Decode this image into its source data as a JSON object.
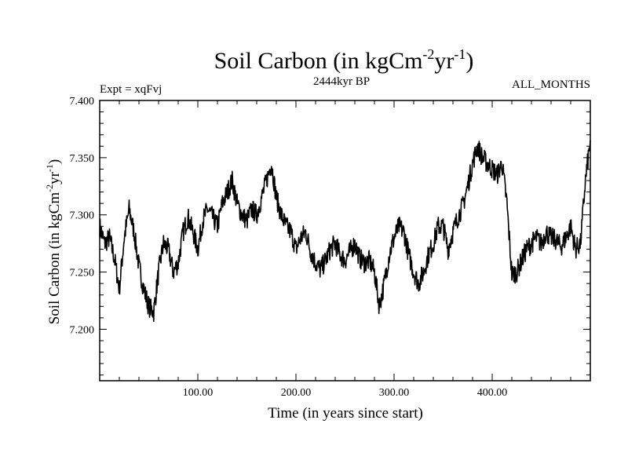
{
  "chart_data": {
    "type": "line",
    "title": "Soil Carbon (in kgCm",
    "title_sup1": "-2",
    "title_mid": "yr",
    "title_sup2": "-1",
    "title_end": ")",
    "left_label": "Expt = xqFvj",
    "center_label": "2444kyr BP",
    "right_label": "ALL_MONTHS",
    "xlabel": "Time (in years since start)",
    "ylabel": "Soil Carbon (in kgCm",
    "ylabel_sup1": "-2",
    "ylabel_mid": "yr",
    "ylabel_sup2": "-1",
    "ylabel_end": ")",
    "xlim": [
      0,
      500
    ],
    "ylim": [
      7.155,
      7.4
    ],
    "x_ticks": [
      100,
      200,
      300,
      400
    ],
    "x_tick_labels": [
      "100.00",
      "200.00",
      "300.00",
      "400.00"
    ],
    "y_ticks": [
      7.2,
      7.25,
      7.3,
      7.35,
      7.4
    ],
    "y_tick_labels": [
      "7.200",
      "7.250",
      "7.300",
      "7.350",
      "7.400"
    ],
    "grid": false,
    "series": [
      {
        "name": "Soil Carbon",
        "x": [
          0,
          5,
          10,
          15,
          20,
          25,
          30,
          35,
          40,
          45,
          50,
          55,
          60,
          65,
          70,
          75,
          80,
          85,
          90,
          95,
          100,
          105,
          110,
          115,
          120,
          125,
          130,
          135,
          140,
          145,
          150,
          155,
          160,
          165,
          170,
          175,
          180,
          185,
          190,
          195,
          200,
          205,
          210,
          215,
          220,
          225,
          230,
          235,
          240,
          245,
          250,
          255,
          260,
          265,
          270,
          275,
          280,
          285,
          290,
          295,
          300,
          305,
          310,
          315,
          320,
          325,
          330,
          335,
          340,
          345,
          350,
          355,
          360,
          365,
          370,
          375,
          380,
          385,
          390,
          395,
          400,
          405,
          410,
          415,
          420,
          425,
          430,
          435,
          440,
          445,
          450,
          455,
          460,
          465,
          470,
          475,
          480,
          485,
          490,
          495,
          500
        ],
        "values": [
          7.29,
          7.275,
          7.28,
          7.262,
          7.235,
          7.28,
          7.305,
          7.285,
          7.255,
          7.235,
          7.22,
          7.215,
          7.25,
          7.275,
          7.27,
          7.25,
          7.258,
          7.285,
          7.298,
          7.285,
          7.27,
          7.295,
          7.305,
          7.298,
          7.29,
          7.31,
          7.32,
          7.33,
          7.31,
          7.3,
          7.295,
          7.305,
          7.3,
          7.315,
          7.33,
          7.345,
          7.315,
          7.3,
          7.29,
          7.285,
          7.27,
          7.28,
          7.285,
          7.268,
          7.258,
          7.252,
          7.26,
          7.27,
          7.275,
          7.265,
          7.26,
          7.268,
          7.275,
          7.262,
          7.258,
          7.26,
          7.25,
          7.22,
          7.24,
          7.265,
          7.28,
          7.29,
          7.285,
          7.265,
          7.25,
          7.24,
          7.25,
          7.265,
          7.275,
          7.29,
          7.29,
          7.27,
          7.285,
          7.298,
          7.308,
          7.325,
          7.345,
          7.36,
          7.35,
          7.345,
          7.34,
          7.335,
          7.345,
          7.31,
          7.248,
          7.25,
          7.26,
          7.27,
          7.275,
          7.28,
          7.275,
          7.285,
          7.28,
          7.278,
          7.272,
          7.28,
          7.29,
          7.27,
          7.275,
          7.33,
          7.365
        ]
      }
    ]
  }
}
